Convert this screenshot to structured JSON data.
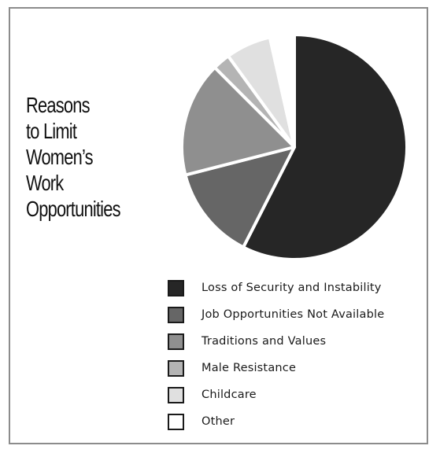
{
  "chart_data": {
    "type": "pie",
    "title_lines": [
      "Reasons",
      "to Limit",
      "Women’s",
      "Work",
      "Opportunities"
    ],
    "unit": "percent",
    "slices": [
      {
        "label": "Loss of Security and Instability",
        "value": 57.5,
        "color": "#262626"
      },
      {
        "label": "Job Opportunities Not Available",
        "value": 13.5,
        "color": "#666666"
      },
      {
        "label": "Traditions and Values",
        "value": 16.5,
        "color": "#8f8f8f"
      },
      {
        "label": "Male Resistance",
        "value": 2.5,
        "color": "#b4b4b4"
      },
      {
        "label": "Childcare",
        "value": 6.5,
        "color": "#e0e0e0"
      },
      {
        "label": "Other",
        "value": 3.5,
        "color": "#ffffff"
      }
    ],
    "legend_position": "bottom-right"
  }
}
